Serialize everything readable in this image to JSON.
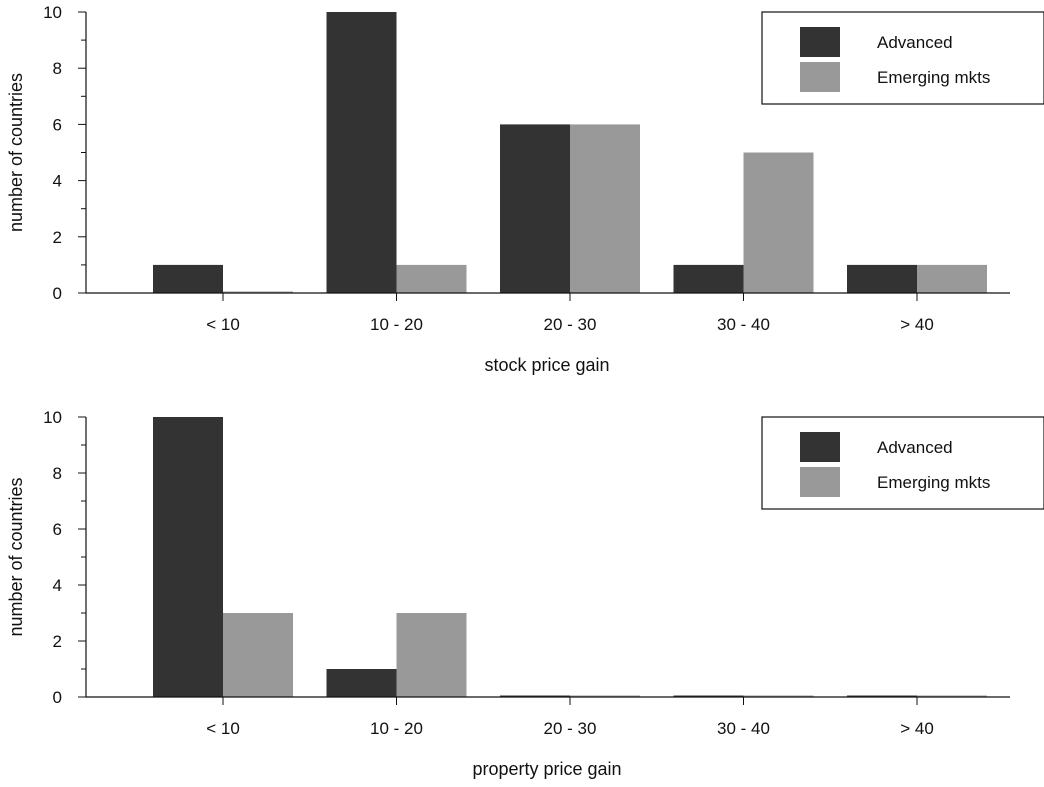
{
  "colors": {
    "advanced": "#333333",
    "emerging": "#999999",
    "axis": "#111111",
    "background": "#ffffff"
  },
  "chart_data": [
    {
      "type": "bar",
      "categories": [
        "< 10",
        "10 - 20",
        "20 - 30",
        "30 - 40",
        "> 40"
      ],
      "series": [
        {
          "name": "Advanced",
          "values": [
            1,
            10,
            6,
            1,
            1
          ]
        },
        {
          "name": "Emerging mkts",
          "values": [
            0,
            1,
            6,
            5,
            1
          ]
        }
      ],
      "title": "",
      "xlabel": "stock price gain",
      "ylabel": "number of countries",
      "ylim": [
        0,
        10
      ],
      "yticks": [
        0,
        2,
        4,
        6,
        8,
        10
      ],
      "grid": false,
      "legend_position": "top-right"
    },
    {
      "type": "bar",
      "categories": [
        "< 10",
        "10 - 20",
        "20 - 30",
        "30 - 40",
        "> 40"
      ],
      "series": [
        {
          "name": "Advanced",
          "values": [
            10,
            1,
            0,
            0,
            0
          ]
        },
        {
          "name": "Emerging mkts",
          "values": [
            3,
            3,
            0,
            0,
            0
          ]
        }
      ],
      "title": "",
      "xlabel": "property price gain",
      "ylabel": "number of countries",
      "ylim": [
        0,
        10
      ],
      "yticks": [
        0,
        2,
        4,
        6,
        8,
        10
      ],
      "grid": false,
      "legend_position": "top-right"
    }
  ]
}
